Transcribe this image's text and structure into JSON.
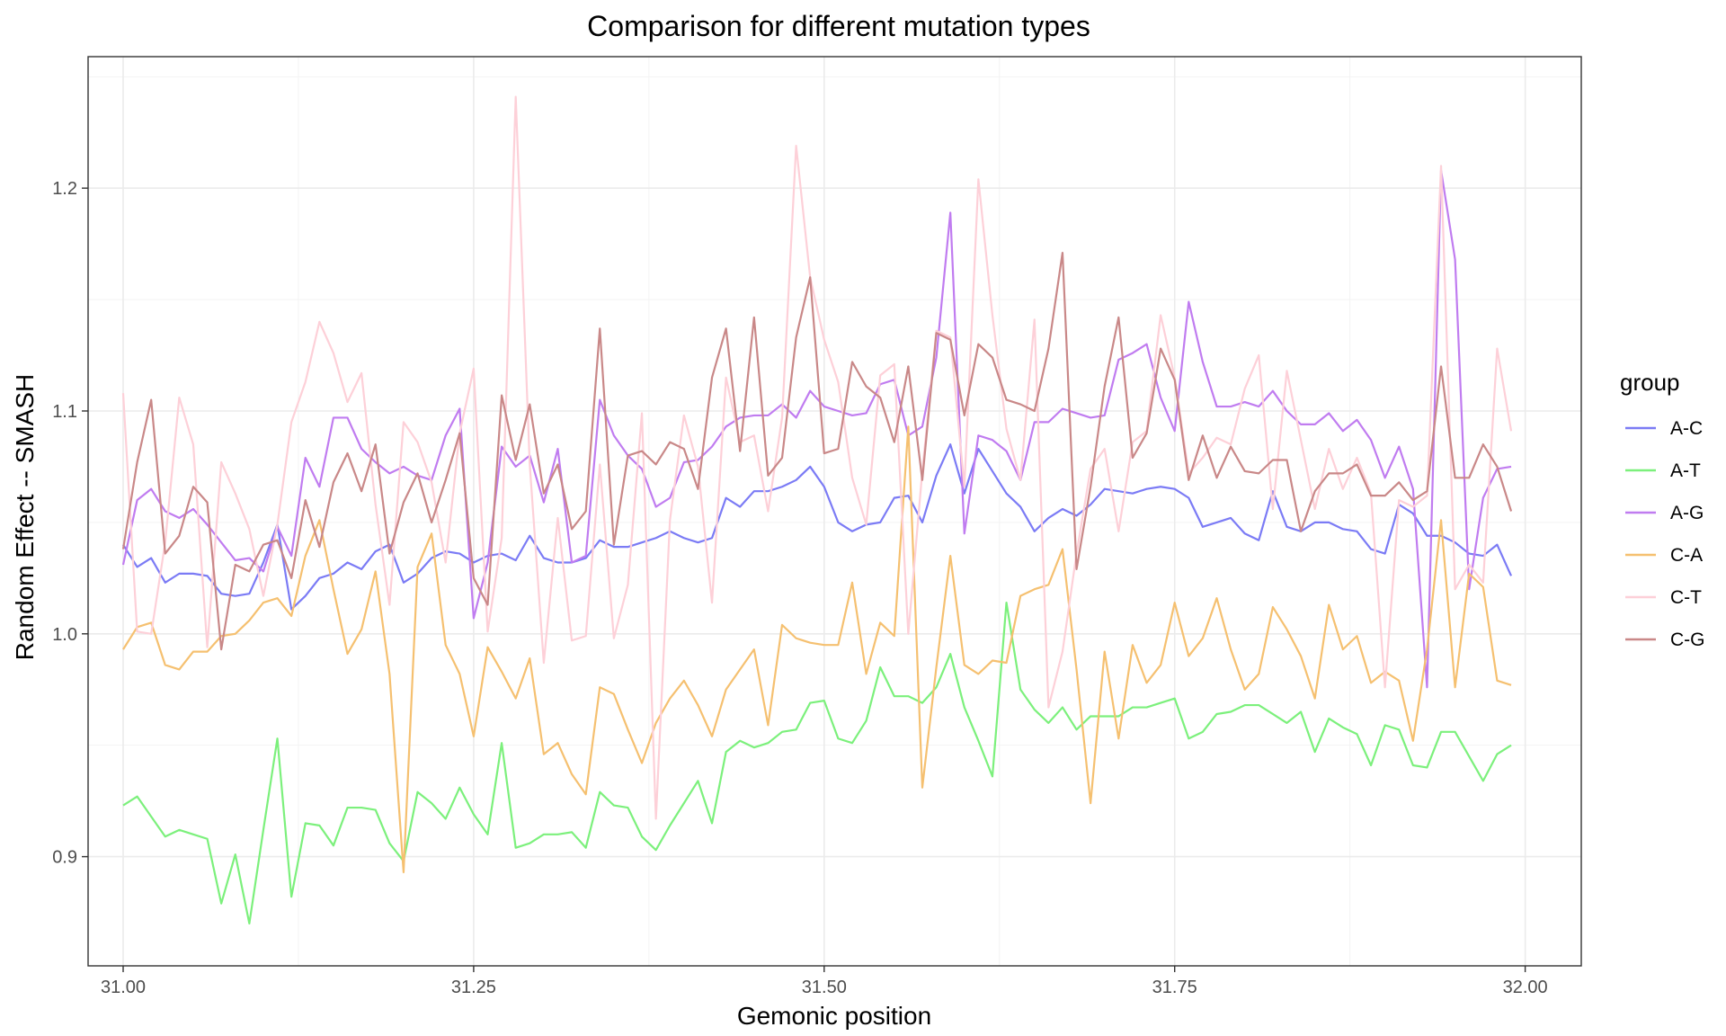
{
  "chart_data": {
    "type": "line",
    "title": "Comparison for different mutation types",
    "xlabel": "Gemonic position",
    "ylabel": "Random Effect -- SMASH",
    "xlim": [
      30.975,
      32.04
    ],
    "ylim": [
      0.851,
      1.259
    ],
    "x_ticks": [
      31.0,
      31.25,
      31.5,
      31.75,
      32.0
    ],
    "x_tick_labels": [
      "31.00",
      "31.25",
      "31.50",
      "31.75",
      "32.00"
    ],
    "y_ticks": [
      0.9,
      1.0,
      1.1,
      1.2
    ],
    "y_tick_labels": [
      "0.9",
      "1.0",
      "1.1",
      "1.2"
    ],
    "grid": true,
    "legend": {
      "title": "group",
      "position": "right"
    },
    "x": {
      "start": 31.0,
      "step": 0.01,
      "count": 100
    },
    "series": [
      {
        "name": "A-C",
        "color": "#7b7bf5",
        "opacity": 1.0,
        "values": [
          1.04,
          1.03,
          1.034,
          1.023,
          1.027,
          1.027,
          1.026,
          1.018,
          1.017,
          1.018,
          1.032,
          1.049,
          1.011,
          1.017,
          1.025,
          1.027,
          1.032,
          1.029,
          1.037,
          1.04,
          1.023,
          1.027,
          1.034,
          1.037,
          1.036,
          1.032,
          1.035,
          1.036,
          1.033,
          1.044,
          1.034,
          1.032,
          1.032,
          1.034,
          1.042,
          1.039,
          1.039,
          1.041,
          1.043,
          1.046,
          1.043,
          1.041,
          1.043,
          1.061,
          1.057,
          1.064,
          1.064,
          1.066,
          1.069,
          1.075,
          1.066,
          1.05,
          1.046,
          1.049,
          1.05,
          1.061,
          1.062,
          1.05,
          1.071,
          1.085,
          1.063,
          1.083,
          1.073,
          1.063,
          1.057,
          1.046,
          1.052,
          1.056,
          1.053,
          1.058,
          1.065,
          1.064,
          1.063,
          1.065,
          1.066,
          1.065,
          1.061,
          1.048,
          1.05,
          1.052,
          1.045,
          1.042,
          1.064,
          1.048,
          1.046,
          1.05,
          1.05,
          1.047,
          1.046,
          1.038,
          1.036,
          1.058,
          1.054,
          1.044,
          1.044,
          1.041,
          1.036,
          1.035,
          1.04,
          1.026
        ]
      },
      {
        "name": "A-T",
        "color": "#7cf07c",
        "opacity": 1.0,
        "values": [
          0.923,
          0.927,
          0.918,
          0.909,
          0.912,
          0.91,
          0.908,
          0.879,
          0.901,
          0.87,
          0.912,
          0.953,
          0.882,
          0.915,
          0.914,
          0.905,
          0.922,
          0.922,
          0.921,
          0.906,
          0.898,
          0.929,
          0.924,
          0.917,
          0.931,
          0.919,
          0.91,
          0.951,
          0.904,
          0.906,
          0.91,
          0.91,
          0.911,
          0.904,
          0.929,
          0.923,
          0.922,
          0.909,
          0.903,
          0.914,
          0.924,
          0.934,
          0.915,
          0.947,
          0.952,
          0.949,
          0.951,
          0.956,
          0.957,
          0.969,
          0.97,
          0.953,
          0.951,
          0.961,
          0.985,
          0.972,
          0.972,
          0.969,
          0.976,
          0.991,
          0.967,
          0.952,
          0.936,
          1.014,
          0.975,
          0.966,
          0.96,
          0.967,
          0.957,
          0.963,
          0.963,
          0.963,
          0.967,
          0.967,
          0.969,
          0.971,
          0.953,
          0.956,
          0.964,
          0.965,
          0.968,
          0.968,
          0.964,
          0.96,
          0.965,
          0.947,
          0.962,
          0.958,
          0.955,
          0.941,
          0.959,
          0.957,
          0.941,
          0.94,
          0.956,
          0.956,
          0.945,
          0.934,
          0.946,
          0.95
        ]
      },
      {
        "name": "A-G",
        "color": "#c07cf0",
        "opacity": 1.0,
        "values": [
          1.031,
          1.06,
          1.065,
          1.055,
          1.052,
          1.056,
          1.049,
          1.041,
          1.033,
          1.034,
          1.028,
          1.048,
          1.035,
          1.079,
          1.066,
          1.097,
          1.097,
          1.083,
          1.077,
          1.072,
          1.075,
          1.071,
          1.069,
          1.089,
          1.101,
          1.007,
          1.032,
          1.084,
          1.075,
          1.08,
          1.059,
          1.083,
          1.032,
          1.035,
          1.105,
          1.089,
          1.08,
          1.074,
          1.057,
          1.061,
          1.077,
          1.078,
          1.084,
          1.093,
          1.097,
          1.098,
          1.098,
          1.103,
          1.097,
          1.109,
          1.102,
          1.1,
          1.098,
          1.099,
          1.112,
          1.114,
          1.089,
          1.093,
          1.124,
          1.189,
          1.045,
          1.089,
          1.087,
          1.082,
          1.069,
          1.095,
          1.095,
          1.101,
          1.099,
          1.097,
          1.098,
          1.123,
          1.126,
          1.13,
          1.106,
          1.091,
          1.149,
          1.122,
          1.102,
          1.102,
          1.104,
          1.102,
          1.109,
          1.1,
          1.094,
          1.094,
          1.099,
          1.091,
          1.096,
          1.087,
          1.07,
          1.084,
          1.065,
          0.976,
          1.208,
          1.168,
          1.02,
          1.061,
          1.074,
          1.075
        ]
      },
      {
        "name": "C-A",
        "color": "#f5c070",
        "opacity": 1.0,
        "values": [
          0.993,
          1.003,
          1.005,
          0.986,
          0.984,
          0.992,
          0.992,
          0.999,
          1.0,
          1.006,
          1.014,
          1.016,
          1.008,
          1.035,
          1.051,
          1.02,
          0.991,
          1.002,
          1.028,
          0.982,
          0.893,
          1.03,
          1.045,
          0.995,
          0.982,
          0.954,
          0.994,
          0.983,
          0.971,
          0.989,
          0.946,
          0.951,
          0.937,
          0.928,
          0.976,
          0.973,
          0.957,
          0.942,
          0.96,
          0.971,
          0.979,
          0.968,
          0.954,
          0.975,
          0.984,
          0.993,
          0.959,
          1.004,
          0.998,
          0.996,
          0.995,
          0.995,
          1.023,
          0.982,
          1.005,
          0.999,
          1.093,
          0.931,
          0.985,
          1.035,
          0.986,
          0.982,
          0.988,
          0.987,
          1.017,
          1.02,
          1.022,
          1.038,
          0.984,
          0.924,
          0.992,
          0.953,
          0.995,
          0.978,
          0.986,
          1.014,
          0.99,
          0.998,
          1.016,
          0.993,
          0.975,
          0.982,
          1.012,
          1.002,
          0.99,
          0.971,
          1.013,
          0.993,
          0.999,
          0.978,
          0.983,
          0.979,
          0.952,
          0.993,
          1.051,
          0.976,
          1.027,
          1.021,
          0.979,
          0.977
        ]
      },
      {
        "name": "C-T",
        "color": "#fdd0d8",
        "opacity": 1.0,
        "values": [
          1.108,
          1.001,
          1.0,
          1.041,
          1.106,
          1.085,
          0.994,
          1.077,
          1.063,
          1.047,
          1.017,
          1.049,
          1.095,
          1.113,
          1.14,
          1.126,
          1.104,
          1.117,
          1.058,
          1.013,
          1.095,
          1.086,
          1.068,
          1.032,
          1.09,
          1.119,
          1.001,
          1.043,
          1.241,
          1.076,
          0.987,
          1.052,
          0.997,
          0.999,
          1.076,
          0.998,
          1.022,
          1.099,
          0.917,
          1.051,
          1.098,
          1.075,
          1.014,
          1.115,
          1.086,
          1.089,
          1.055,
          1.097,
          1.219,
          1.16,
          1.132,
          1.113,
          1.07,
          1.049,
          1.116,
          1.121,
          1.0,
          1.073,
          1.136,
          1.133,
          1.066,
          1.204,
          1.143,
          1.092,
          1.069,
          1.141,
          0.967,
          0.992,
          1.036,
          1.074,
          1.083,
          1.046,
          1.086,
          1.091,
          1.143,
          1.115,
          1.072,
          1.079,
          1.088,
          1.085,
          1.11,
          1.125,
          1.056,
          1.118,
          1.087,
          1.056,
          1.083,
          1.065,
          1.079,
          1.063,
          0.976,
          1.06,
          1.057,
          1.062,
          1.21,
          1.02,
          1.031,
          1.023,
          1.128,
          1.091
        ]
      },
      {
        "name": "C-G",
        "color": "#c98888",
        "opacity": 1.0,
        "values": [
          1.038,
          1.077,
          1.105,
          1.036,
          1.044,
          1.066,
          1.059,
          0.993,
          1.031,
          1.028,
          1.04,
          1.042,
          1.025,
          1.06,
          1.039,
          1.068,
          1.081,
          1.064,
          1.085,
          1.036,
          1.059,
          1.072,
          1.05,
          1.069,
          1.09,
          1.025,
          1.013,
          1.107,
          1.078,
          1.103,
          1.063,
          1.076,
          1.047,
          1.055,
          1.137,
          1.04,
          1.08,
          1.082,
          1.076,
          1.086,
          1.083,
          1.065,
          1.115,
          1.137,
          1.082,
          1.142,
          1.071,
          1.079,
          1.133,
          1.16,
          1.081,
          1.083,
          1.122,
          1.111,
          1.106,
          1.086,
          1.12,
          1.069,
          1.135,
          1.132,
          1.098,
          1.13,
          1.124,
          1.105,
          1.103,
          1.1,
          1.128,
          1.171,
          1.029,
          1.066,
          1.111,
          1.142,
          1.079,
          1.09,
          1.128,
          1.114,
          1.069,
          1.089,
          1.07,
          1.084,
          1.073,
          1.072,
          1.078,
          1.078,
          1.046,
          1.064,
          1.072,
          1.072,
          1.076,
          1.062,
          1.062,
          1.068,
          1.06,
          1.064,
          1.12,
          1.07,
          1.07,
          1.085,
          1.075,
          1.055
        ]
      }
    ]
  }
}
